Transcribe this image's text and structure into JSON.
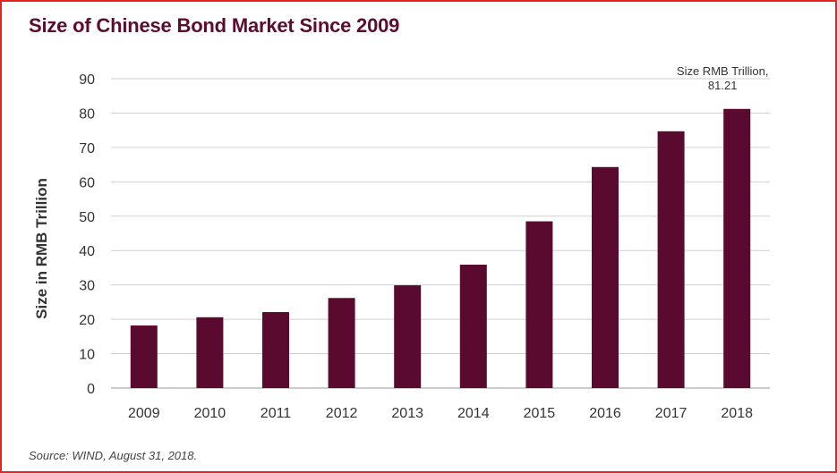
{
  "title": "Size of Chinese Bond Market Since 2009",
  "source": "Source: WIND, August 31, 2018.",
  "colors": {
    "bar": "#5a0a2e",
    "title": "#5c0c2f",
    "border": "#e8231f",
    "grid": "#d0d0d0"
  },
  "chart_data": {
    "type": "bar",
    "categories": [
      "2009",
      "2010",
      "2011",
      "2012",
      "2013",
      "2014",
      "2015",
      "2016",
      "2017",
      "2018"
    ],
    "values": [
      18.2,
      20.6,
      22.1,
      26.2,
      29.9,
      35.9,
      48.5,
      64.3,
      74.7,
      81.21
    ],
    "xlabel": "",
    "ylabel": "Size in RMB Trillion",
    "ylim": [
      0,
      90
    ],
    "yticks": [
      "0",
      "10",
      "20",
      "30",
      "40",
      "50",
      "60",
      "70",
      "80",
      "90"
    ],
    "grid": true,
    "annotation": {
      "line1": "Size RMB Trillion,",
      "line2": "81.21",
      "category": "2018"
    }
  }
}
